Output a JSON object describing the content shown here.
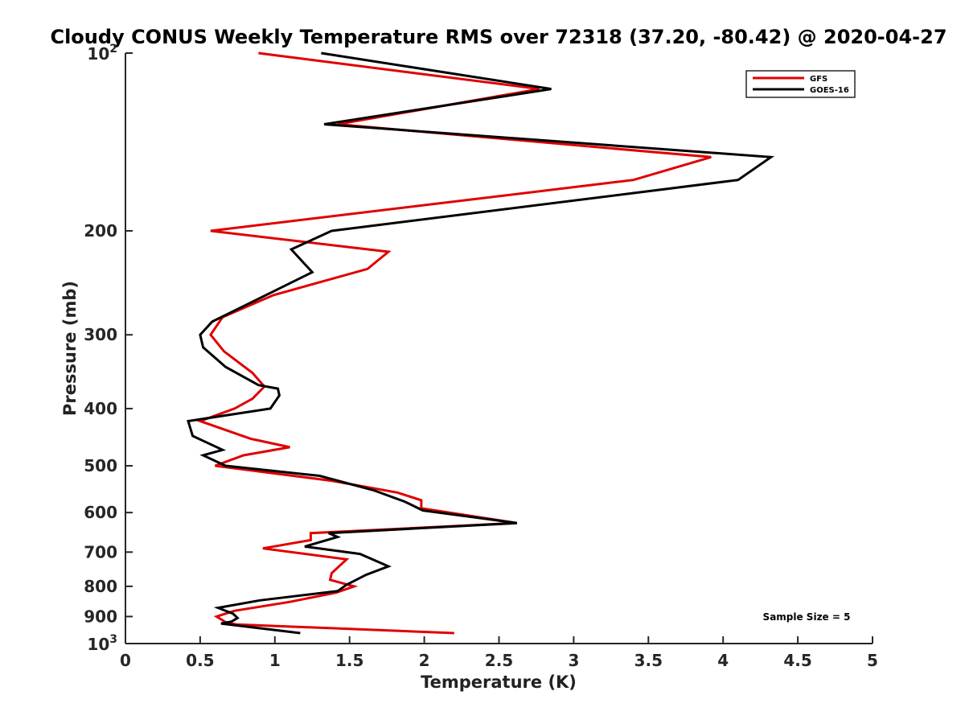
{
  "chart_data": {
    "type": "line",
    "title": "Cloudy CONUS Weekly Temperature RMS over 72318 (37.20, -80.42) @ 2020-04-27",
    "xlabel": "Temperature (K)",
    "ylabel": "Pressure (mb)",
    "xlim": [
      0,
      5
    ],
    "ylim": [
      100,
      1000
    ],
    "y_scale": "log",
    "y_reversed": true,
    "grid": false,
    "legend_position": "top-right",
    "xticks": [
      "0",
      "0.5",
      "1",
      "1.5",
      "2",
      "2.5",
      "3",
      "3.5",
      "4",
      "4.5",
      "5"
    ],
    "yticks": [
      {
        "value": 100,
        "base": "10",
        "exp": "2"
      },
      {
        "value": 200,
        "label": "200"
      },
      {
        "value": 300,
        "label": "300"
      },
      {
        "value": 400,
        "label": "400"
      },
      {
        "value": 500,
        "label": "500"
      },
      {
        "value": 600,
        "label": "600"
      },
      {
        "value": 700,
        "label": "700"
      },
      {
        "value": 800,
        "label": "800"
      },
      {
        "value": 900,
        "label": "900"
      },
      {
        "value": 1000,
        "base": "10",
        "exp": "3"
      }
    ],
    "annotation": "Sample Size = 5",
    "series": [
      {
        "name": "GFS",
        "color": "#e00000",
        "points": [
          [
            0.89,
            100
          ],
          [
            2.77,
            115
          ],
          [
            1.42,
            132
          ],
          [
            3.92,
            150
          ],
          [
            3.4,
            164
          ],
          [
            0.57,
            200
          ],
          [
            1.76,
            217
          ],
          [
            1.62,
            232
          ],
          [
            0.99,
            257
          ],
          [
            0.65,
            280
          ],
          [
            0.57,
            300
          ],
          [
            0.66,
            320
          ],
          [
            0.85,
            348
          ],
          [
            0.93,
            367
          ],
          [
            0.85,
            385
          ],
          [
            0.73,
            400
          ],
          [
            0.5,
            420
          ],
          [
            0.84,
            450
          ],
          [
            1.1,
            465
          ],
          [
            0.79,
            480
          ],
          [
            0.6,
            500
          ],
          [
            1.38,
            530
          ],
          [
            1.82,
            555
          ],
          [
            1.98,
            572
          ],
          [
            1.98,
            590
          ],
          [
            2.62,
            625
          ],
          [
            1.24,
            650
          ],
          [
            1.24,
            668
          ],
          [
            0.92,
            690
          ],
          [
            1.48,
            720
          ],
          [
            1.38,
            760
          ],
          [
            1.37,
            780
          ],
          [
            1.53,
            800
          ],
          [
            1.41,
            820
          ],
          [
            1.1,
            850
          ],
          [
            0.73,
            880
          ],
          [
            0.61,
            900
          ],
          [
            0.67,
            920
          ],
          [
            0.74,
            928
          ],
          [
            2.2,
            960
          ]
        ]
      },
      {
        "name": "GOES-16",
        "color": "#000000",
        "points": [
          [
            1.31,
            100
          ],
          [
            2.85,
            115
          ],
          [
            1.33,
            132
          ],
          [
            4.32,
            150
          ],
          [
            4.1,
            164
          ],
          [
            1.38,
            200
          ],
          [
            1.11,
            215
          ],
          [
            1.25,
            235
          ],
          [
            0.58,
            285
          ],
          [
            0.5,
            300
          ],
          [
            0.52,
            315
          ],
          [
            0.67,
            340
          ],
          [
            0.89,
            365
          ],
          [
            1.02,
            370
          ],
          [
            1.03,
            380
          ],
          [
            0.97,
            400
          ],
          [
            0.42,
            420
          ],
          [
            0.45,
            445
          ],
          [
            0.65,
            470
          ],
          [
            0.52,
            480
          ],
          [
            0.67,
            500
          ],
          [
            1.3,
            520
          ],
          [
            1.66,
            550
          ],
          [
            1.87,
            575
          ],
          [
            1.99,
            595
          ],
          [
            2.62,
            625
          ],
          [
            1.36,
            650
          ],
          [
            1.42,
            660
          ],
          [
            1.2,
            685
          ],
          [
            1.57,
            705
          ],
          [
            1.76,
            740
          ],
          [
            1.61,
            765
          ],
          [
            1.48,
            795
          ],
          [
            1.42,
            815
          ],
          [
            0.9,
            845
          ],
          [
            0.62,
            870
          ],
          [
            0.72,
            890
          ],
          [
            0.75,
            905
          ],
          [
            0.71,
            918
          ],
          [
            0.64,
            925
          ],
          [
            1.17,
            960
          ]
        ]
      }
    ]
  }
}
